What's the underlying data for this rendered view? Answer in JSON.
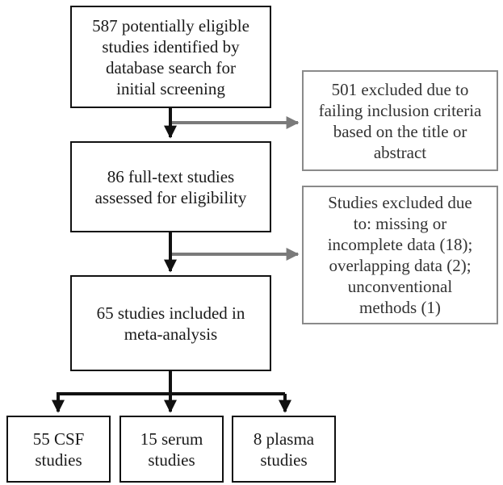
{
  "flowchart": {
    "identified": "587 potentially eligible\nstudies identified by\ndatabase search for\ninitial screening",
    "excluded_screening": "501 excluded due to\nfailing inclusion criteria\nbased on the title or\nabstract",
    "full_text": "86 full-text studies\nassessed for eligibility",
    "excluded_full_text": "Studies excluded due\nto: missing or\nincomplete data (18);\noverlapping data (2);\nunconventional\nmethods (1)",
    "included": "65 studies included in\nmeta-analysis",
    "csf": "55 CSF\nstudies",
    "serum": "15 serum\nstudies",
    "plasma": "8 plasma\nstudies"
  },
  "colors": {
    "main_border": "#111111",
    "side_border": "#8a8a8a",
    "main_arrow": "#111111",
    "side_arrow": "#7a7a7a"
  }
}
